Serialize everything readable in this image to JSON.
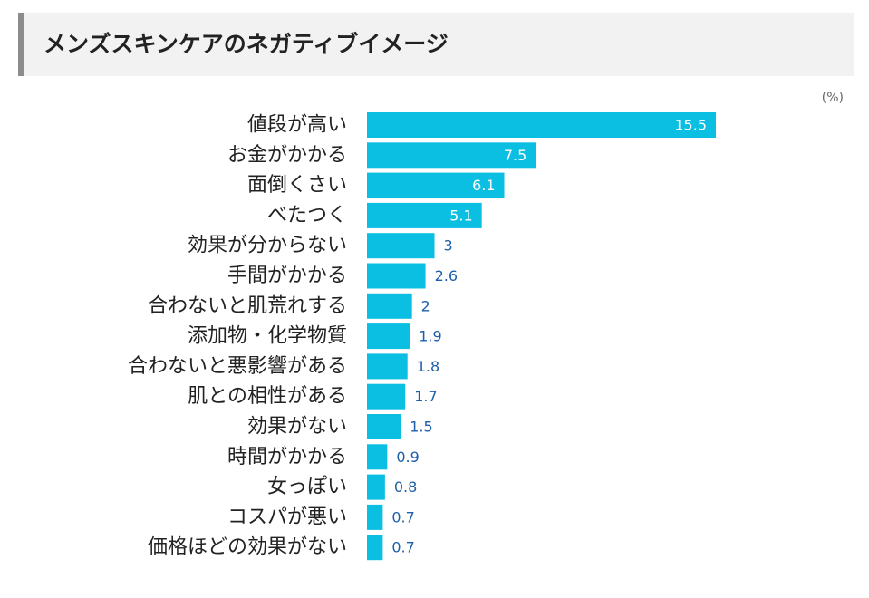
{
  "header": {
    "title": "メンズスキンケアのネガティブイメージ"
  },
  "chart_data": {
    "type": "bar",
    "orientation": "horizontal",
    "title": "メンズスキンケアのネガティブイメージ",
    "unit": "(%)",
    "categories": [
      "値段が高い",
      "お金がかかる",
      "面倒くさい",
      "べたつく",
      "効果が分からない",
      "手間がかかる",
      "合わないと肌荒れする",
      "添加物・化学物質",
      "合わないと悪影響がある",
      "肌との相性がある",
      "効果がない",
      "時間がかかる",
      "女っぽい",
      "コスパが悪い",
      "価格ほどの効果がない"
    ],
    "values": [
      15.5,
      7.5,
      6.1,
      5.1,
      3,
      2.6,
      2,
      1.9,
      1.8,
      1.7,
      1.5,
      0.9,
      0.8,
      0.7,
      0.7
    ],
    "value_labels": [
      "15.5",
      "7.5",
      "6.1",
      "5.1",
      "3",
      "2.6",
      "2",
      "1.9",
      "1.8",
      "1.7",
      "1.5",
      "0.9",
      "0.8",
      "0.7",
      "0.7"
    ],
    "xlim": [
      0,
      15.5
    ],
    "grid": false,
    "legend": "none",
    "colors": {
      "bar": "#0bbfe3",
      "value_label": "#1d5fa8",
      "value_label_inside": "#ffffff",
      "category_label": "#222222"
    }
  }
}
